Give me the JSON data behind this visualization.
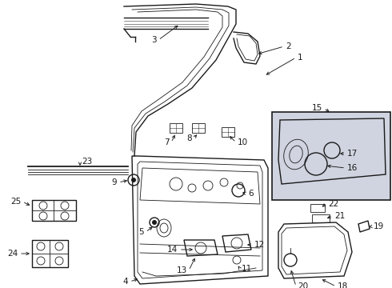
{
  "bg_color": "#ffffff",
  "line_color": "#1a1a1a",
  "box_fill": "#d0d4e0",
  "fig_w": 4.9,
  "fig_h": 3.6,
  "dpi": 100
}
